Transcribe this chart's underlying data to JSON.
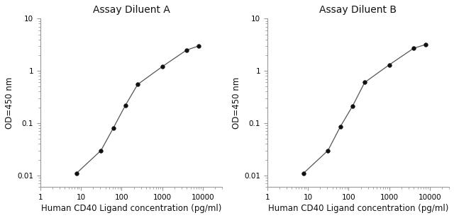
{
  "panel_A": {
    "title": "Assay Diluent A",
    "x": [
      7.8,
      31.25,
      62.5,
      125,
      250,
      1000,
      4000,
      8000
    ],
    "y": [
      0.011,
      0.03,
      0.08,
      0.22,
      0.55,
      1.2,
      2.5,
      3.0
    ],
    "xlabel": "Human CD40 Ligand concentration (pg/ml)",
    "ylabel": "OD=450 nm",
    "xlim": [
      1,
      30000
    ],
    "ylim": [
      0.006,
      10
    ]
  },
  "panel_B": {
    "title": "Assay Diluent B",
    "x": [
      7.8,
      31.25,
      62.5,
      125,
      250,
      1000,
      4000,
      8000
    ],
    "y": [
      0.011,
      0.03,
      0.085,
      0.21,
      0.6,
      1.3,
      2.7,
      3.2
    ],
    "xlabel": "Human CD40 Ligand concentration (pg/ml)",
    "ylabel": "OD=450 nm",
    "xlim": [
      1,
      30000
    ],
    "ylim": [
      0.006,
      10
    ]
  },
  "line_color": "#555555",
  "marker_color": "#111111",
  "background_color": "#ffffff",
  "spine_color": "#999999",
  "title_fontsize": 10,
  "label_fontsize": 8.5,
  "tick_fontsize": 7.5
}
